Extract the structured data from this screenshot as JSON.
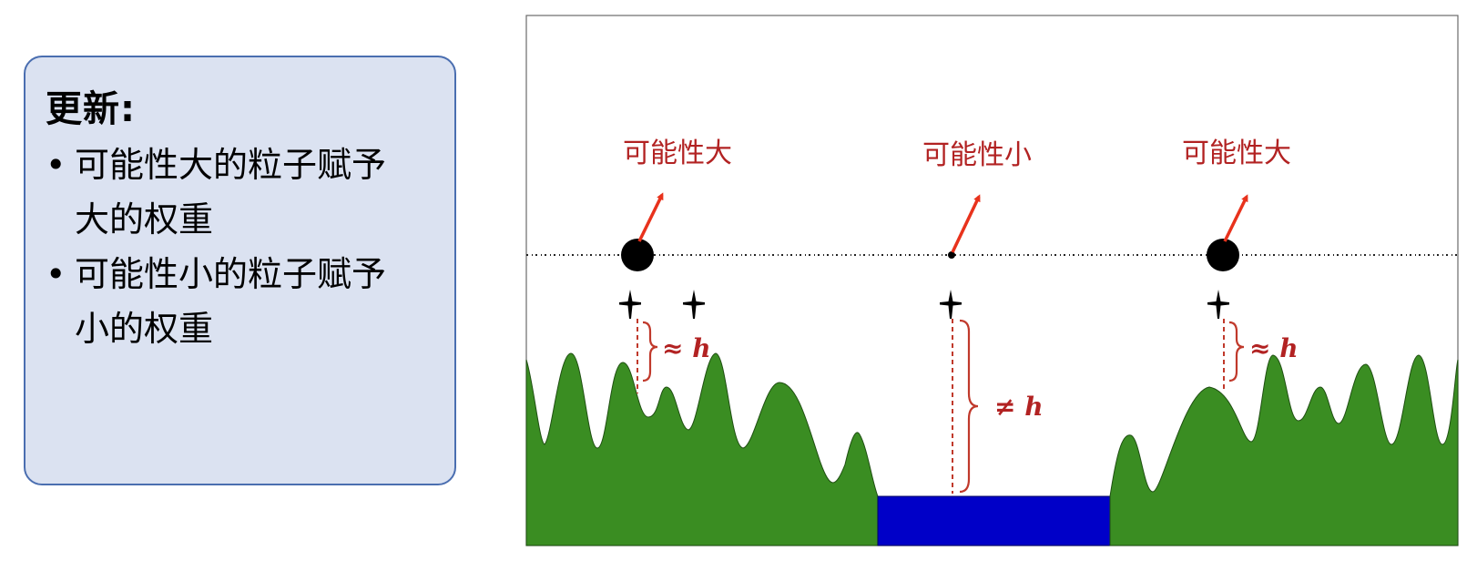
{
  "panel": {
    "title": "更新:",
    "bullets": [
      {
        "line1": "可能性大的粒子赋予",
        "line2": "大的权重"
      },
      {
        "line1": "可能性小的粒子赋予",
        "line2": "小的权重"
      }
    ]
  },
  "diagram": {
    "particle_labels": [
      "可能性大",
      "可能性小",
      "可能性大"
    ],
    "annotations": [
      "≈ h",
      "≠ h",
      "≈ h"
    ],
    "colors": {
      "terrain": "#3a8d22",
      "water": "#0000c8",
      "label": "#b22222",
      "arrow": "#e8321c",
      "particle": "#000000",
      "measure": "#c0392b"
    },
    "icons": [
      "particle-dot",
      "aircraft-icon",
      "arrow-icon",
      "brace-icon"
    ]
  }
}
